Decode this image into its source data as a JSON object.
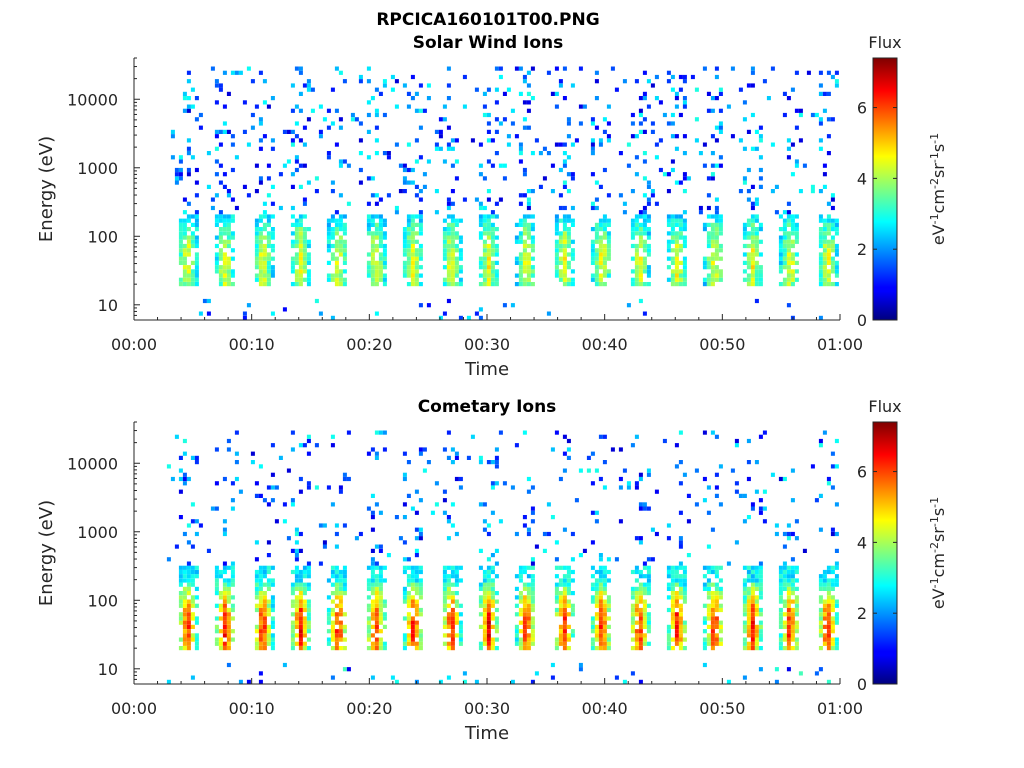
{
  "figure": {
    "title": "RPCICA160101T00.PNG"
  },
  "chart_data": [
    {
      "type": "heatmap",
      "title": "Solar Wind Ions",
      "xlabel": "Time",
      "ylabel": "Energy (eV)",
      "x_tick_labels": [
        "00:00",
        "00:10",
        "00:20",
        "00:30",
        "00:40",
        "00:50",
        "01:00"
      ],
      "x_ticks_minutes": [
        0,
        10,
        20,
        30,
        40,
        50,
        60
      ],
      "xlim_minutes": [
        0,
        60
      ],
      "y_scale": "log",
      "y_tick_labels": [
        "10",
        "100",
        "1000",
        "10000"
      ],
      "y_ticks": [
        10,
        100,
        1000,
        10000
      ],
      "ylim": [
        6,
        40000
      ],
      "colorbar": {
        "title": "Flux",
        "label": "eV-1cm-2sr-1s-1",
        "tick_labels": [
          "0",
          "2",
          "4",
          "6"
        ],
        "ticks": [
          0,
          2,
          4,
          6
        ],
        "range": [
          0,
          7.4
        ],
        "colormap": "jet"
      },
      "bursts": {
        "count": 17,
        "start_minute": 4.4,
        "period_minutes": 3.2,
        "data_start_minute": 2.8,
        "data_end_minute": 59.8,
        "core_energy_range_eV": [
          20,
          200
        ],
        "peak_energy_eV": 40,
        "peak_flux": 4.6,
        "background_flux": 2.5
      }
    },
    {
      "type": "heatmap",
      "title": "Cometary Ions",
      "xlabel": "Time",
      "ylabel": "Energy (eV)",
      "x_tick_labels": [
        "00:00",
        "00:10",
        "00:20",
        "00:30",
        "00:40",
        "00:50",
        "01:00"
      ],
      "x_ticks_minutes": [
        0,
        10,
        20,
        30,
        40,
        50,
        60
      ],
      "xlim_minutes": [
        0,
        60
      ],
      "y_scale": "log",
      "y_tick_labels": [
        "10",
        "100",
        "1000",
        "10000"
      ],
      "y_ticks": [
        10,
        100,
        1000,
        10000
      ],
      "ylim": [
        6,
        40000
      ],
      "colorbar": {
        "title": "Flux",
        "label": "eV-1cm-2sr-1s-1",
        "tick_labels": [
          "0",
          "2",
          "4",
          "6"
        ],
        "ticks": [
          0,
          2,
          4,
          6
        ],
        "range": [
          0,
          7.4
        ],
        "colormap": "jet"
      },
      "bursts": {
        "count": 17,
        "start_minute": 4.4,
        "period_minutes": 3.2,
        "data_start_minute": 2.8,
        "data_end_minute": 59.8,
        "core_energy_range_eV": [
          18,
          300
        ],
        "peak_energy_eV": 40,
        "peak_flux": 6.5,
        "background_flux": 2.7
      }
    }
  ]
}
